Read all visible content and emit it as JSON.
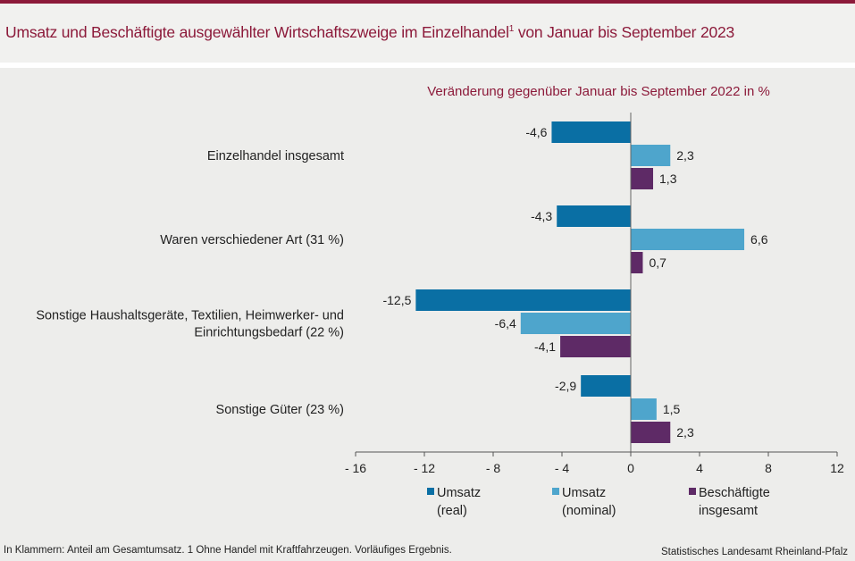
{
  "title_main": "Umsatz und Beschäftigte ausgewählter Wirtschaftszweige im Einzelhandel",
  "title_sup": "1",
  "title_rest": " von Januar bis September 2023",
  "footnote": "In Klammern: Anteil am Gesamtumsatz. 1 Ohne Handel mit Kraftfahrzeugen. Vorläufiges Ergebnis.",
  "source": "Statistisches Landesamt Rheinland-Pfalz",
  "colors": {
    "real": "#0a6fa4",
    "nominal": "#4ea5cc",
    "employees": "#5e2a66",
    "title": "#8c1a3a"
  },
  "chart_data": {
    "type": "bar",
    "orientation": "horizontal",
    "subtitle": "Veränderung gegenüber Januar bis September 2022 in %",
    "categories": [
      [
        "Einzelhandel insgesamt"
      ],
      [
        "Waren verschiedener Art (31 %)"
      ],
      [
        "Sonstige Haushaltsgeräte, Textilien, Heimwerker- und",
        "Einrichtungsbedarf (22 %)"
      ],
      [
        "Sonstige Güter (23 %)"
      ]
    ],
    "series": [
      {
        "key": "real",
        "name": [
          "Umsatz",
          "(real)"
        ],
        "values": [
          -4.6,
          -4.3,
          -12.5,
          -2.9
        ],
        "labels": [
          "-4,6",
          "-4,3",
          "-12,5",
          "-2,9"
        ]
      },
      {
        "key": "nominal",
        "name": [
          "Umsatz",
          "(nominal)"
        ],
        "values": [
          2.3,
          6.6,
          -6.4,
          1.5
        ],
        "labels": [
          "2,3",
          "6,6",
          "-6,4",
          "1,5"
        ]
      },
      {
        "key": "employees",
        "name": [
          "Beschäftigte",
          "insgesamt"
        ],
        "values": [
          1.3,
          0.7,
          -4.1,
          2.3
        ],
        "labels": [
          "1,3",
          "0,7",
          "-4,1",
          "2,3"
        ]
      }
    ],
    "xlim": [
      -16,
      12
    ],
    "ticks": [
      -16,
      -12,
      -8,
      -4,
      0,
      4,
      8,
      12
    ],
    "tick_labels": [
      "- 16",
      "- 12",
      "- 8",
      "- 4",
      "0",
      "4",
      "8",
      "12"
    ],
    "legend_position": "bottom"
  }
}
